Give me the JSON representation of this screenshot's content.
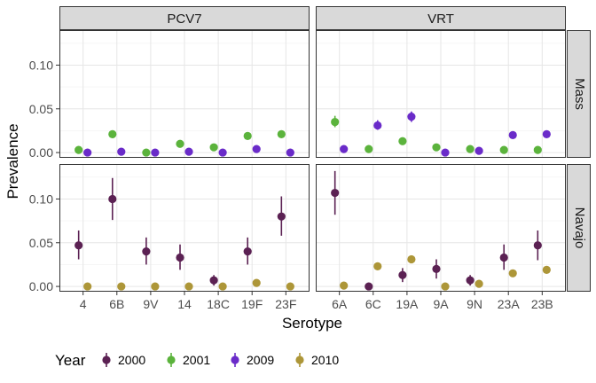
{
  "chart_data": {
    "type": "scatter",
    "title": "",
    "xlabel": "Serotype",
    "ylabel": "Prevalence",
    "ylim": [
      -0.006,
      0.14
    ],
    "y_ticks": [
      "0.00",
      "0.05",
      "0.10"
    ],
    "y_tick_values": [
      0,
      0.05,
      0.1
    ],
    "grid": true,
    "facet_columns": [
      "PCV7",
      "VRT"
    ],
    "facet_rows": [
      "Mass",
      "Navajo"
    ],
    "categories": {
      "PCV7": [
        "4",
        "6B",
        "9V",
        "14",
        "18C",
        "19F",
        "23F"
      ],
      "VRT": [
        "6A",
        "6C",
        "19A",
        "9A",
        "9N",
        "23A",
        "23B"
      ]
    },
    "legend": {
      "title": "Year",
      "position": "bottom",
      "items": [
        {
          "label": "2000",
          "color": "#5b2153"
        },
        {
          "label": "2001",
          "color": "#5bb33c"
        },
        {
          "label": "2009",
          "color": "#6a2bc9"
        },
        {
          "label": "2010",
          "color": "#ad9638"
        }
      ]
    },
    "panels": [
      {
        "column": "PCV7",
        "row": "Mass",
        "series": [
          {
            "name": "2001",
            "points": [
              {
                "x": "4",
                "y": 0.003
              },
              {
                "x": "6B",
                "y": 0.021
              },
              {
                "x": "9V",
                "y": 0.0
              },
              {
                "x": "14",
                "y": 0.01
              },
              {
                "x": "18C",
                "y": 0.006
              },
              {
                "x": "19F",
                "y": 0.019
              },
              {
                "x": "23F",
                "y": 0.021
              }
            ]
          },
          {
            "name": "2009",
            "points": [
              {
                "x": "4",
                "y": 0.0
              },
              {
                "x": "6B",
                "y": 0.001
              },
              {
                "x": "9V",
                "y": 0.0
              },
              {
                "x": "14",
                "y": 0.001
              },
              {
                "x": "18C",
                "y": 0.0
              },
              {
                "x": "19F",
                "y": 0.004
              },
              {
                "x": "23F",
                "y": 0.0
              }
            ]
          }
        ]
      },
      {
        "column": "VRT",
        "row": "Mass",
        "series": [
          {
            "name": "2001",
            "points": [
              {
                "x": "6A",
                "y": 0.035,
                "lo": 0.029,
                "hi": 0.042
              },
              {
                "x": "6C",
                "y": 0.004
              },
              {
                "x": "19A",
                "y": 0.013
              },
              {
                "x": "9A",
                "y": 0.006
              },
              {
                "x": "9N",
                "y": 0.004
              },
              {
                "x": "23A",
                "y": 0.003
              },
              {
                "x": "23B",
                "y": 0.003
              }
            ]
          },
          {
            "name": "2009",
            "points": [
              {
                "x": "6A",
                "y": 0.004
              },
              {
                "x": "6C",
                "y": 0.031,
                "lo": 0.026,
                "hi": 0.037
              },
              {
                "x": "19A",
                "y": 0.041,
                "lo": 0.035,
                "hi": 0.047
              },
              {
                "x": "9A",
                "y": 0.0
              },
              {
                "x": "9N",
                "y": 0.002
              },
              {
                "x": "23A",
                "y": 0.02
              },
              {
                "x": "23B",
                "y": 0.021
              }
            ]
          }
        ]
      },
      {
        "column": "PCV7",
        "row": "Navajo",
        "series": [
          {
            "name": "2000",
            "points": [
              {
                "x": "4",
                "y": 0.047,
                "lo": 0.031,
                "hi": 0.064
              },
              {
                "x": "6B",
                "y": 0.1,
                "lo": 0.076,
                "hi": 0.124
              },
              {
                "x": "9V",
                "y": 0.04,
                "lo": 0.025,
                "hi": 0.056
              },
              {
                "x": "14",
                "y": 0.033,
                "lo": 0.019,
                "hi": 0.048
              },
              {
                "x": "18C",
                "y": 0.007,
                "lo": 0.001,
                "hi": 0.013
              },
              {
                "x": "19F",
                "y": 0.04,
                "lo": 0.025,
                "hi": 0.056
              },
              {
                "x": "23F",
                "y": 0.08,
                "lo": 0.058,
                "hi": 0.103
              }
            ]
          },
          {
            "name": "2010",
            "points": [
              {
                "x": "4",
                "y": 0.0
              },
              {
                "x": "6B",
                "y": 0.0
              },
              {
                "x": "9V",
                "y": 0.0
              },
              {
                "x": "14",
                "y": 0.0
              },
              {
                "x": "18C",
                "y": 0.0
              },
              {
                "x": "19F",
                "y": 0.004
              },
              {
                "x": "23F",
                "y": 0.0
              }
            ]
          }
        ]
      },
      {
        "column": "VRT",
        "row": "Navajo",
        "series": [
          {
            "name": "2000",
            "points": [
              {
                "x": "6A",
                "y": 0.107,
                "lo": 0.082,
                "hi": 0.132
              },
              {
                "x": "6C",
                "y": 0.0
              },
              {
                "x": "19A",
                "y": 0.013,
                "lo": 0.005,
                "hi": 0.021
              },
              {
                "x": "9A",
                "y": 0.02,
                "lo": 0.009,
                "hi": 0.031
              },
              {
                "x": "9N",
                "y": 0.007,
                "lo": 0.001,
                "hi": 0.013
              },
              {
                "x": "23A",
                "y": 0.033,
                "lo": 0.019,
                "hi": 0.048
              },
              {
                "x": "23B",
                "y": 0.047,
                "lo": 0.03,
                "hi": 0.064
              }
            ]
          },
          {
            "name": "2010",
            "points": [
              {
                "x": "6A",
                "y": 0.001
              },
              {
                "x": "6C",
                "y": 0.023
              },
              {
                "x": "19A",
                "y": 0.031
              },
              {
                "x": "9A",
                "y": 0.0
              },
              {
                "x": "9N",
                "y": 0.003
              },
              {
                "x": "23A",
                "y": 0.015
              },
              {
                "x": "23B",
                "y": 0.019
              }
            ]
          }
        ]
      }
    ]
  }
}
